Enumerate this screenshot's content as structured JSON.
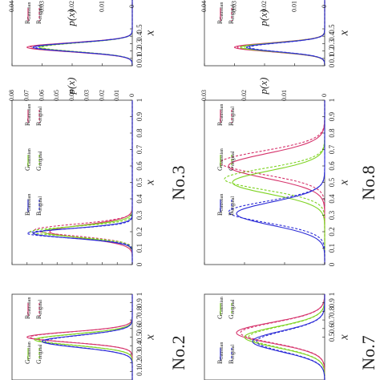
{
  "chart_data": [
    {
      "type": "line",
      "title": "No.2",
      "xlabel": "x",
      "ylabel": "",
      "xlim": [
        0,
        1
      ],
      "ylim": [
        0,
        0.08
      ],
      "x_ticks": [
        "0",
        "0.1",
        "0.2",
        "0.3",
        "0.4",
        "0.5",
        "0.6",
        "0.7",
        "0.8",
        "0.9",
        "1"
      ],
      "y_ticks": [],
      "legend": [
        "R_Gaussian",
        "R_original",
        "G_Gaussian",
        "G_original",
        "B_Gaussian",
        "B_original"
      ],
      "series": [
        {
          "name": "R_Gaussian",
          "color": "#d6336c",
          "dash": "solid",
          "mean": 0.5,
          "sd": 0.06,
          "peak": 0.07
        },
        {
          "name": "R_original",
          "color": "#d6336c",
          "dash": "dashed",
          "mean": 0.5,
          "sd": 0.06,
          "peak": 0.068
        },
        {
          "name": "G_Gaussian",
          "color": "#7ed321",
          "dash": "solid",
          "mean": 0.47,
          "sd": 0.065,
          "peak": 0.065
        },
        {
          "name": "G_original",
          "color": "#7ed321",
          "dash": "dashed",
          "mean": 0.47,
          "sd": 0.065,
          "peak": 0.063
        },
        {
          "name": "B_Gaussian",
          "color": "#2b2bd6",
          "dash": "solid",
          "mean": 0.45,
          "sd": 0.07,
          "peak": 0.06
        },
        {
          "name": "B_original",
          "color": "#2b2bd6",
          "dash": "dashed",
          "mean": 0.45,
          "sd": 0.07,
          "peak": 0.058
        }
      ]
    },
    {
      "type": "line",
      "title": "No.3",
      "xlabel": "x",
      "ylabel": "p(x)",
      "xlim": [
        0,
        1
      ],
      "ylim": [
        0,
        0.08
      ],
      "x_ticks": [
        "0",
        "0.1",
        "0.2",
        "0.3",
        "0.4",
        "0.5",
        "0.6",
        "0.7",
        "0.8",
        "0.9",
        "1"
      ],
      "y_ticks": [
        "0",
        "0.01",
        "0.02",
        "0.03",
        "0.04",
        "0.05",
        "0.06",
        "0.07",
        "0.08"
      ],
      "legend": [
        "R_Gaussian",
        "R_original",
        "G_Gaussian",
        "G_original",
        "B_Gaussian",
        "B_original"
      ],
      "series": [
        {
          "name": "R_Gaussian",
          "color": "#d6336c",
          "dash": "solid",
          "mean": 0.2,
          "sd": 0.04,
          "peak": 0.055
        },
        {
          "name": "R_original",
          "color": "#d6336c",
          "dash": "dashed",
          "mean": 0.21,
          "sd": 0.035,
          "peak": 0.065
        },
        {
          "name": "G_Gaussian",
          "color": "#7ed321",
          "dash": "solid",
          "mean": 0.2,
          "sd": 0.035,
          "peak": 0.06
        },
        {
          "name": "G_original",
          "color": "#7ed321",
          "dash": "dashed",
          "mean": 0.2,
          "sd": 0.03,
          "peak": 0.068
        },
        {
          "name": "B_Gaussian",
          "color": "#2b2bd6",
          "dash": "solid",
          "mean": 0.19,
          "sd": 0.03,
          "peak": 0.066
        },
        {
          "name": "B_original",
          "color": "#2b2bd6",
          "dash": "dashed",
          "mean": 0.19,
          "sd": 0.028,
          "peak": 0.07
        }
      ]
    },
    {
      "type": "line",
      "title": "",
      "xlabel": "x",
      "ylabel": "p(x)",
      "xlim": [
        0,
        1
      ],
      "ylim": [
        0,
        0.04
      ],
      "x_ticks": [
        "0",
        "0.1",
        "0.2",
        "0.3",
        "0.4",
        "0.5"
      ],
      "y_ticks": [
        "0",
        "0.01",
        "0.02",
        "0.03",
        "0.04"
      ],
      "legend": [
        "R_Gaussian",
        "R_original"
      ],
      "series": [
        {
          "name": "R_Gaussian",
          "color": "#d6336c",
          "dash": "solid",
          "mean": 0.25,
          "sd": 0.06,
          "peak": 0.035
        },
        {
          "name": "R_original",
          "color": "#d6336c",
          "dash": "dashed",
          "mean": 0.25,
          "sd": 0.06,
          "peak": 0.034
        },
        {
          "name": "",
          "color": "#7ed321",
          "dash": "solid",
          "mean": 0.25,
          "sd": 0.06,
          "peak": 0.031
        },
        {
          "name": "",
          "color": "#7ed321",
          "dash": "dashed",
          "mean": 0.25,
          "sd": 0.06,
          "peak": 0.03
        },
        {
          "name": "",
          "color": "#2b2bd6",
          "dash": "solid",
          "mean": 0.25,
          "sd": 0.06,
          "peak": 0.033
        },
        {
          "name": "",
          "color": "#2b2bd6",
          "dash": "dashed",
          "mean": 0.25,
          "sd": 0.06,
          "peak": 0.032
        }
      ]
    },
    {
      "type": "line",
      "title": "No.7",
      "xlabel": "x",
      "ylabel": "",
      "xlim": [
        0,
        1
      ],
      "ylim": [
        0,
        0.03
      ],
      "x_ticks": [
        "0.5",
        "0.6",
        "0.7",
        "0.8",
        "0.9",
        "1"
      ],
      "y_ticks": [],
      "legend": [
        "G_Gaussian",
        "G_original",
        "B_Gaussian",
        "B_original"
      ],
      "series": [
        {
          "name": "R_Gaussian",
          "color": "#d6336c",
          "dash": "solid",
          "mean": 0.55,
          "sd": 0.12,
          "peak": 0.022
        },
        {
          "name": "R_original",
          "color": "#d6336c",
          "dash": "dashed",
          "mean": 0.55,
          "sd": 0.12,
          "peak": 0.021
        },
        {
          "name": "G_Gaussian",
          "color": "#7ed321",
          "dash": "solid",
          "mean": 0.5,
          "sd": 0.12,
          "peak": 0.02
        },
        {
          "name": "G_original",
          "color": "#7ed321",
          "dash": "dashed",
          "mean": 0.5,
          "sd": 0.12,
          "peak": 0.019
        },
        {
          "name": "B_Gaussian",
          "color": "#2b2bd6",
          "dash": "solid",
          "mean": 0.45,
          "sd": 0.12,
          "peak": 0.018
        },
        {
          "name": "B_original",
          "color": "#2b2bd6",
          "dash": "dashed",
          "mean": 0.45,
          "sd": 0.12,
          "peak": 0.017
        }
      ]
    },
    {
      "type": "line",
      "title": "No.8",
      "xlabel": "x",
      "ylabel": "p(x)",
      "xlim": [
        0,
        1
      ],
      "ylim": [
        0,
        0.03
      ],
      "x_ticks": [
        "0",
        "0.1",
        "0.2",
        "0.3",
        "0.4",
        "0.5",
        "0.6",
        "0.7",
        "0.8",
        "0.9",
        "1"
      ],
      "y_ticks": [
        "0",
        "0.01",
        "0.02",
        "0.03"
      ],
      "legend": [
        "R_Gaussian",
        "R_original",
        "G_Gaussian",
        "G_original",
        "B_Gaussian",
        "B_original"
      ],
      "series": [
        {
          "name": "R_Gaussian",
          "color": "#d6336c",
          "dash": "solid",
          "mean": 0.6,
          "sd": 0.075,
          "peak": 0.024
        },
        {
          "name": "R_original",
          "color": "#d6336c",
          "dash": "dashed",
          "mean": 0.62,
          "sd": 0.07,
          "peak": 0.026
        },
        {
          "name": "G_Gaussian",
          "color": "#7ed321",
          "dash": "solid",
          "mean": 0.5,
          "sd": 0.07,
          "peak": 0.023
        },
        {
          "name": "G_original",
          "color": "#7ed321",
          "dash": "dashed",
          "mean": 0.52,
          "sd": 0.065,
          "peak": 0.025
        },
        {
          "name": "B_Gaussian",
          "color": "#2b2bd6",
          "dash": "solid",
          "mean": 0.31,
          "sd": 0.07,
          "peak": 0.022
        },
        {
          "name": "B_original",
          "color": "#2b2bd6",
          "dash": "dashed",
          "mean": 0.32,
          "sd": 0.065,
          "peak": 0.024
        }
      ]
    },
    {
      "type": "line",
      "title": "",
      "xlabel": "x",
      "ylabel": "p(x)",
      "xlim": [
        0,
        1
      ],
      "ylim": [
        0,
        0.04
      ],
      "x_ticks": [
        "0",
        "0.1",
        "0.2",
        "0.3",
        "0.4",
        "0.5"
      ],
      "y_ticks": [
        "0",
        "0.01",
        "0.02",
        "0.03",
        "0.04"
      ],
      "legend": [
        "R_Gaussian",
        "R_original"
      ],
      "series": [
        {
          "name": "R_Gaussian",
          "color": "#d6336c",
          "dash": "solid",
          "mean": 0.25,
          "sd": 0.06,
          "peak": 0.03
        },
        {
          "name": "R_original",
          "color": "#d6336c",
          "dash": "dashed",
          "mean": 0.25,
          "sd": 0.06,
          "peak": 0.029
        },
        {
          "name": "",
          "color": "#7ed321",
          "dash": "solid",
          "mean": 0.25,
          "sd": 0.06,
          "peak": 0.028
        },
        {
          "name": "",
          "color": "#7ed321",
          "dash": "dashed",
          "mean": 0.25,
          "sd": 0.06,
          "peak": 0.027
        },
        {
          "name": "",
          "color": "#2b2bd6",
          "dash": "solid",
          "mean": 0.25,
          "sd": 0.06,
          "peak": 0.026
        },
        {
          "name": "",
          "color": "#2b2bd6",
          "dash": "dashed",
          "mean": 0.25,
          "sd": 0.06,
          "peak": 0.025
        }
      ]
    }
  ]
}
